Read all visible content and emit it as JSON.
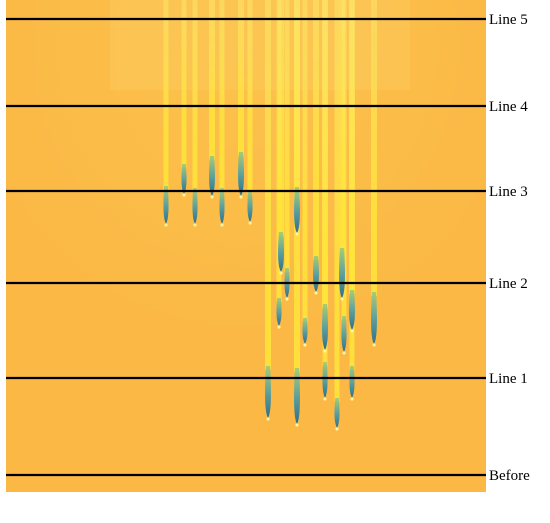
{
  "colors": {
    "field": "#FBB845",
    "field_light": "#FCC24C",
    "streak": "#FFE63A",
    "streak_pale": "#FDEB6A",
    "tip_dark": "#2E6F8A",
    "tip_mid": "#5FA19C",
    "line": "#000000",
    "label": "#000000"
  },
  "lines": [
    {
      "label": "Line 5"
    },
    {
      "label": "Line 4"
    },
    {
      "label": "Line 3"
    },
    {
      "label": "Line 2"
    },
    {
      "label": "Line 1"
    },
    {
      "label": "Before"
    }
  ]
}
